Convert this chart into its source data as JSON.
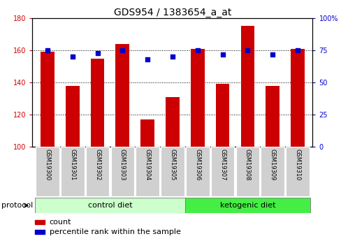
{
  "title": "GDS954 / 1383654_a_at",
  "samples": [
    "GSM19300",
    "GSM19301",
    "GSM19302",
    "GSM19303",
    "GSM19304",
    "GSM19305",
    "GSM19306",
    "GSM19307",
    "GSM19308",
    "GSM19309",
    "GSM19310"
  ],
  "counts": [
    159,
    138,
    155,
    164,
    117,
    131,
    161,
    139,
    175,
    138,
    161
  ],
  "percentiles": [
    75,
    70,
    73,
    75,
    68,
    70,
    75,
    72,
    75,
    72,
    75
  ],
  "left_ylim": [
    100,
    180
  ],
  "left_yticks": [
    100,
    120,
    140,
    160,
    180
  ],
  "right_ylim": [
    0,
    100
  ],
  "right_yticks": [
    0,
    25,
    50,
    75,
    100
  ],
  "right_yticklabels": [
    "0",
    "25",
    "50",
    "75",
    "100%"
  ],
  "bar_color": "#cc0000",
  "dot_color": "#0000cc",
  "bar_width": 0.55,
  "ctrl_color": "#ccffcc",
  "keto_color": "#44ee44",
  "ctrl_label": "control diet",
  "keto_label": "ketogenic diet",
  "ctrl_indices": [
    0,
    1,
    2,
    3,
    4,
    5
  ],
  "keto_indices": [
    6,
    7,
    8,
    9,
    10
  ],
  "protocol_label": "protocol",
  "title_fontsize": 10,
  "tick_fontsize": 7,
  "sample_fontsize": 6,
  "legend_fontsize": 8,
  "proto_fontsize": 8
}
